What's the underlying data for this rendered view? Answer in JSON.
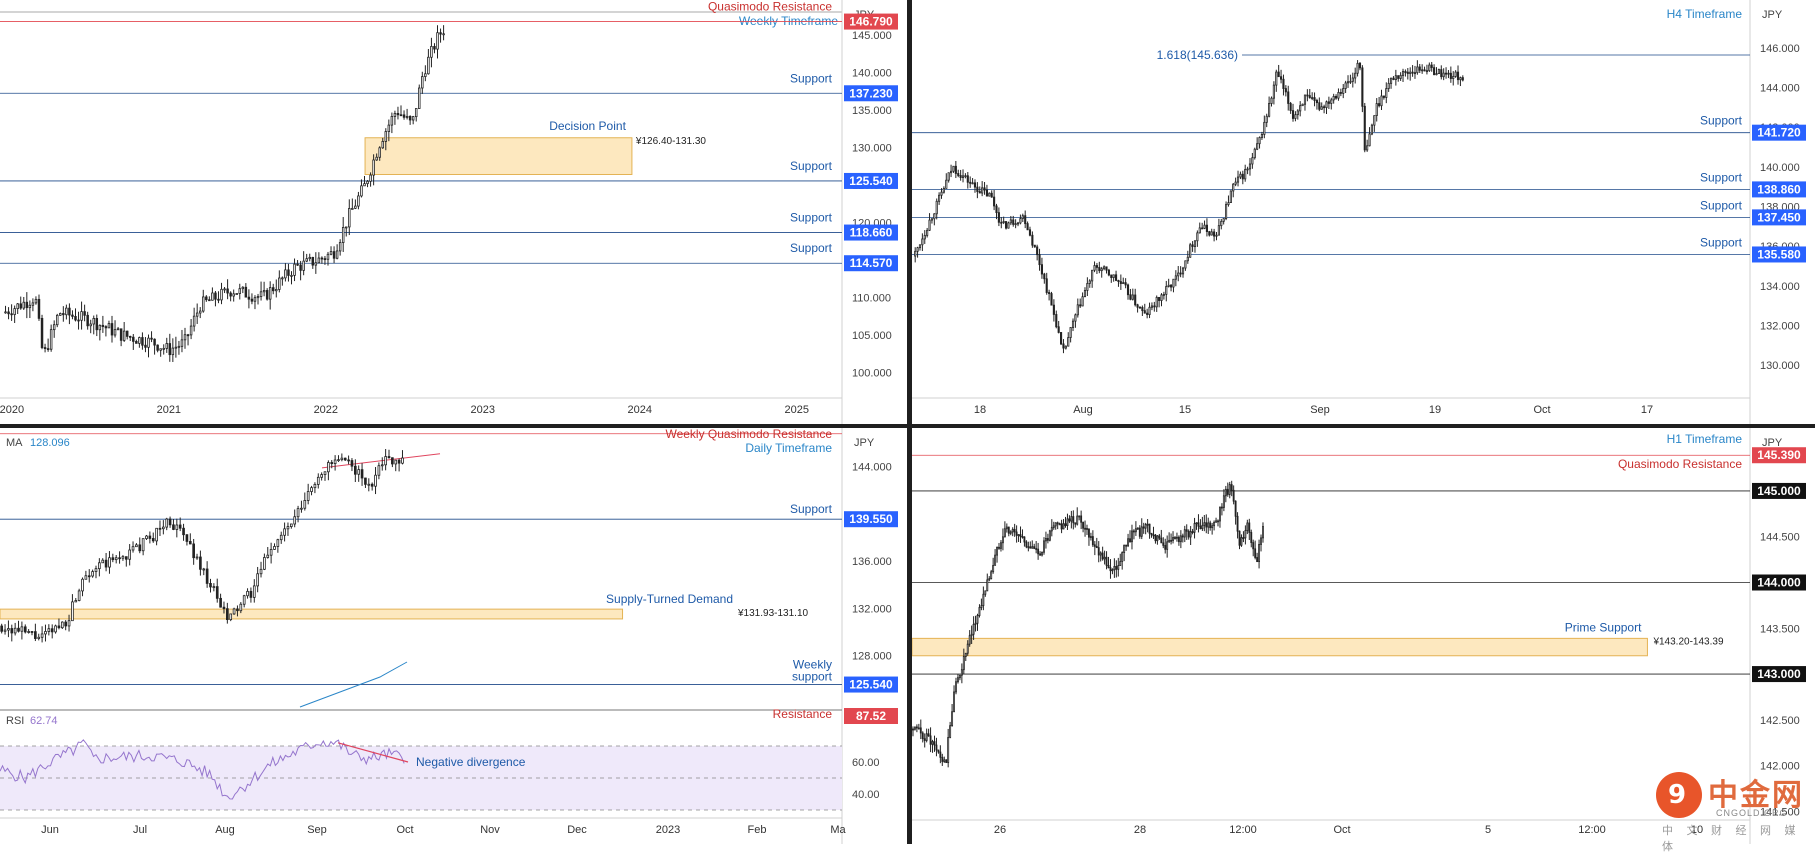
{
  "colors": {
    "up": "#2b2b2b",
    "grid_line": "#1e4a8a",
    "support_tag": "#2962ff",
    "resistance_tag": "#e2474f",
    "resistance_text": "#c8302e",
    "timeframe_text": "#2a86c8",
    "zone_fill": "#fde8bf",
    "zone_border": "#e4b354",
    "rsi_line": "#9575cd",
    "rsi_band": "#efe9fa",
    "divergence": "#e0455e",
    "ma_line": "#2a86c8"
  },
  "watermark": {
    "cn": "中金网",
    "en": "CNGOLD.ORG",
    "sub": "中 文 财 经 网 媒 体",
    "logo": "9"
  },
  "chart_data": [
    {
      "id": "weekly",
      "type": "candlestick",
      "axis_label": "JPY",
      "timeframe": "Weekly Timeframe",
      "ylim": [
        97,
        149
      ],
      "y_ticks": [
        "145.000",
        "140.000",
        "135.000",
        "130.000",
        "125.000",
        "120.000",
        "110.000",
        "105.000",
        "100.000"
      ],
      "x_ticks": [
        "2020",
        "2021",
        "2022",
        "2023",
        "2024",
        "2025"
      ],
      "price_path": [
        [
          2019.95,
          108
        ],
        [
          2020.15,
          110
        ],
        [
          2020.2,
          102
        ],
        [
          2020.3,
          108
        ],
        [
          2020.5,
          107
        ],
        [
          2020.7,
          105
        ],
        [
          2020.9,
          104
        ],
        [
          2021.0,
          103
        ],
        [
          2021.1,
          104
        ],
        [
          2021.2,
          109
        ],
        [
          2021.4,
          111
        ],
        [
          2021.6,
          110
        ],
        [
          2021.8,
          114
        ],
        [
          2021.95,
          115
        ],
        [
          2022.05,
          116
        ],
        [
          2022.15,
          121
        ],
        [
          2022.25,
          125
        ],
        [
          2022.35,
          131
        ],
        [
          2022.45,
          135
        ],
        [
          2022.55,
          133
        ],
        [
          2022.62,
          140
        ],
        [
          2022.72,
          145
        ],
        [
          2022.76,
          146
        ]
      ],
      "levels": [
        {
          "label": "Quasimodo Resistance",
          "tag": "146.790",
          "value": 146.79,
          "kind": "resistance"
        },
        {
          "label": "Support",
          "tag": "137.230",
          "value": 137.23,
          "kind": "support"
        },
        {
          "label": "Support",
          "tag": "125.540",
          "value": 125.54,
          "kind": "support"
        },
        {
          "label": "Support",
          "tag": "118.660",
          "value": 118.66,
          "kind": "support"
        },
        {
          "label": "Support",
          "tag": "114.570",
          "value": 114.57,
          "kind": "support"
        }
      ],
      "zones": [
        {
          "label": "Decision Point",
          "range_text": "¥126.40-131.30",
          "from": 126.4,
          "to": 131.3,
          "x0": 2022.25,
          "x1": 2023.95
        }
      ]
    },
    {
      "id": "h4",
      "type": "candlestick",
      "axis_label": "JPY",
      "timeframe": "H4 Timeframe",
      "ylim": [
        129,
        147.4
      ],
      "y_ticks": [
        "146.000",
        "144.000",
        "142.000",
        "140.000",
        "138.000",
        "136.000",
        "134.000",
        "132.000",
        "130.000"
      ],
      "x_ticks": [
        "18",
        "Aug",
        "15",
        "Sep",
        "19",
        "Oct",
        "17"
      ],
      "price_path": [
        [
          0,
          135.5
        ],
        [
          0.04,
          138.0
        ],
        [
          0.07,
          140.0
        ],
        [
          0.11,
          139.0
        ],
        [
          0.14,
          138.5
        ],
        [
          0.16,
          137.0
        ],
        [
          0.2,
          137.5
        ],
        [
          0.23,
          135.0
        ],
        [
          0.26,
          132.0
        ],
        [
          0.27,
          130.5
        ],
        [
          0.3,
          133.0
        ],
        [
          0.33,
          135.0
        ],
        [
          0.36,
          134.5
        ],
        [
          0.38,
          134.0
        ],
        [
          0.42,
          132.5
        ],
        [
          0.45,
          133.5
        ],
        [
          0.48,
          134.5
        ],
        [
          0.52,
          137.0
        ],
        [
          0.55,
          136.5
        ],
        [
          0.58,
          139.0
        ],
        [
          0.61,
          140.0
        ],
        [
          0.63,
          141.5
        ],
        [
          0.65,
          143.5
        ],
        [
          0.66,
          144.8
        ],
        [
          0.69,
          142.5
        ],
        [
          0.71,
          143.5
        ],
        [
          0.74,
          143.0
        ],
        [
          0.76,
          143.5
        ],
        [
          0.78,
          144.0
        ],
        [
          0.8,
          144.5
        ],
        [
          0.81,
          145.6
        ],
        [
          0.82,
          140.5
        ],
        [
          0.84,
          143.0
        ],
        [
          0.87,
          144.5
        ],
        [
          0.9,
          144.8
        ],
        [
          0.93,
          145.0
        ],
        [
          0.96,
          144.7
        ],
        [
          1.0,
          144.5
        ]
      ],
      "levels": [
        {
          "label": "1.618(145.636)",
          "tag": "",
          "value": 145.636,
          "kind": "fib"
        },
        {
          "label": "Support",
          "tag": "141.720",
          "value": 141.72,
          "kind": "support"
        },
        {
          "label": "Support",
          "tag": "138.860",
          "value": 138.86,
          "kind": "support"
        },
        {
          "label": "Support",
          "tag": "137.450",
          "value": 137.45,
          "kind": "support"
        },
        {
          "label": "Support",
          "tag": "135.580",
          "value": 135.58,
          "kind": "support"
        }
      ]
    },
    {
      "id": "daily",
      "type": "candlestick",
      "axis_label": "JPY",
      "timeframe": "Daily Timeframe",
      "ma_label": "MA",
      "ma_value": "128.096",
      "ylim": [
        124.4,
        146.6
      ],
      "y_ticks": [
        "144.000",
        "136.000",
        "132.000",
        "128.000"
      ],
      "x_ticks": [
        "Jun",
        "Jul",
        "Aug",
        "Sep",
        "Oct",
        "Nov",
        "Dec",
        "2023",
        "Feb",
        "Ma"
      ],
      "price_path": [
        [
          0,
          130.5
        ],
        [
          0.05,
          129.5
        ],
        [
          0.08,
          131.0
        ],
        [
          0.1,
          135.0
        ],
        [
          0.15,
          136.5
        ],
        [
          0.18,
          138.0
        ],
        [
          0.2,
          139.5
        ],
        [
          0.22,
          138.0
        ],
        [
          0.25,
          134.0
        ],
        [
          0.27,
          131.0
        ],
        [
          0.3,
          133.5
        ],
        [
          0.32,
          137.0
        ],
        [
          0.35,
          139.5
        ],
        [
          0.38,
          143.5
        ],
        [
          0.4,
          144.5
        ],
        [
          0.42,
          144.0
        ],
        [
          0.44,
          142.0
        ],
        [
          0.45,
          144.5
        ],
        [
          0.48,
          144.7
        ]
      ],
      "levels": [
        {
          "label": "Weekly Quasimodo Resistance",
          "tag": "",
          "value": 146.79,
          "kind": "resistance"
        },
        {
          "label": "Support",
          "tag": "139.550",
          "value": 139.55,
          "kind": "support"
        },
        {
          "label": "Weekly support",
          "tag": "125.540",
          "value": 125.54,
          "kind": "support"
        }
      ],
      "zones": [
        {
          "label": "Supply-Turned Demand",
          "range_text": "¥131.93-131.10",
          "from": 131.1,
          "to": 131.93,
          "x0": 0,
          "x1": 0.87
        }
      ],
      "rsi": {
        "label": "RSI",
        "value": "62.74",
        "resistance_label": "Resistance",
        "resistance_tag": "87.52",
        "y_ticks": [
          "60.00",
          "40.00"
        ],
        "ylim": [
          25,
          95
        ],
        "annotation": "Negative divergence",
        "path": [
          [
            0,
            55
          ],
          [
            0.03,
            50
          ],
          [
            0.06,
            60
          ],
          [
            0.09,
            68
          ],
          [
            0.1,
            72
          ],
          [
            0.11,
            62
          ],
          [
            0.14,
            63
          ],
          [
            0.18,
            64
          ],
          [
            0.22,
            60
          ],
          [
            0.25,
            52
          ],
          [
            0.27,
            38
          ],
          [
            0.29,
            45
          ],
          [
            0.32,
            58
          ],
          [
            0.35,
            66
          ],
          [
            0.38,
            73
          ],
          [
            0.4,
            72
          ],
          [
            0.42,
            64
          ],
          [
            0.44,
            62
          ],
          [
            0.46,
            65
          ],
          [
            0.48,
            62.74
          ]
        ]
      }
    },
    {
      "id": "h1",
      "type": "candlestick",
      "axis_label": "JPY",
      "timeframe": "H1 Timeframe",
      "ylim": [
        141.45,
        145.6
      ],
      "y_ticks": [
        "144.500",
        "143.500",
        "142.500",
        "142.000",
        "141.500"
      ],
      "x_ticks": [
        "26",
        "28",
        "12:00",
        "Oct",
        "5",
        "12:00",
        "10"
      ],
      "price_path": [
        [
          0,
          142.4
        ],
        [
          0.02,
          142.3
        ],
        [
          0.04,
          142.0
        ],
        [
          0.05,
          142.8
        ],
        [
          0.07,
          143.4
        ],
        [
          0.09,
          144.0
        ],
        [
          0.11,
          144.6
        ],
        [
          0.13,
          144.5
        ],
        [
          0.15,
          144.3
        ],
        [
          0.17,
          144.6
        ],
        [
          0.2,
          144.7
        ],
        [
          0.22,
          144.4
        ],
        [
          0.24,
          144.1
        ],
        [
          0.26,
          144.5
        ],
        [
          0.28,
          144.6
        ],
        [
          0.3,
          144.4
        ],
        [
          0.32,
          144.5
        ],
        [
          0.34,
          144.6
        ],
        [
          0.36,
          144.6
        ],
        [
          0.38,
          145.1
        ],
        [
          0.39,
          144.4
        ],
        [
          0.4,
          144.6
        ],
        [
          0.41,
          144.2
        ],
        [
          0.42,
          144.6
        ]
      ],
      "levels": [
        {
          "label": "Quasimodo Resistance",
          "tag": "145.390",
          "value": 145.39,
          "kind": "resistance"
        },
        {
          "label": "",
          "tag": "145.000",
          "value": 145.0,
          "kind": "round"
        },
        {
          "label": "",
          "tag": "144.000",
          "value": 144.0,
          "kind": "round"
        },
        {
          "label": "",
          "tag": "143.000",
          "value": 143.0,
          "kind": "round"
        }
      ],
      "zones": [
        {
          "label": "Prime Support",
          "range_text": "¥143.20-143.39",
          "from": 143.2,
          "to": 143.39,
          "x0": 0,
          "x1": 0.88
        }
      ]
    }
  ]
}
